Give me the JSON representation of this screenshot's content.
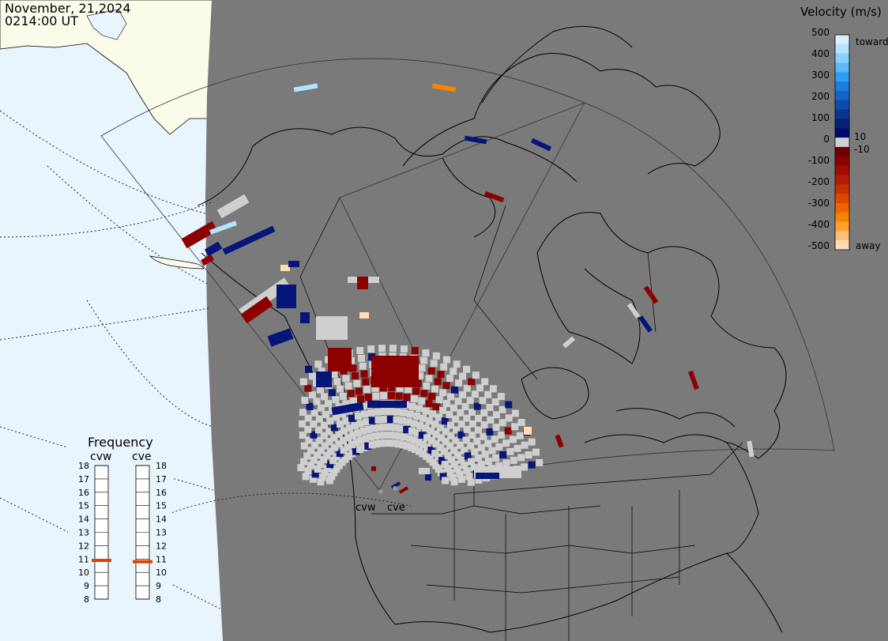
{
  "header": {
    "date": "November, 21,2024",
    "time": "0214:00 UT"
  },
  "velocity_scale": {
    "title": "Velocity (m/s)",
    "toward_label": "toward",
    "away_label": "away",
    "ticks": [
      "500",
      "400",
      "300",
      "200",
      "100",
      "10",
      "0",
      "-10",
      "-100",
      "-200",
      "-300",
      "-400",
      "-500"
    ],
    "bands": [
      {
        "value": 500,
        "color": "#d9f0ff"
      },
      {
        "value": 450,
        "color": "#b4e2ff"
      },
      {
        "value": 400,
        "color": "#8ad0ff"
      },
      {
        "value": 350,
        "color": "#5bbaf7"
      },
      {
        "value": 300,
        "color": "#2e9ef0"
      },
      {
        "value": 250,
        "color": "#1a7fe0"
      },
      {
        "value": 200,
        "color": "#1463c8"
      },
      {
        "value": 150,
        "color": "#0e4aa8"
      },
      {
        "value": 100,
        "color": "#0a3590"
      },
      {
        "value": 50,
        "color": "#061f7a"
      },
      {
        "value": 10,
        "color": "#000a6a"
      },
      {
        "value": 0,
        "color": "#d0d0d0"
      },
      {
        "value": -10,
        "color": "#6e0000"
      },
      {
        "value": -50,
        "color": "#8c0000"
      },
      {
        "value": -100,
        "color": "#a10c00"
      },
      {
        "value": -150,
        "color": "#b31c00"
      },
      {
        "value": -200,
        "color": "#c73000"
      },
      {
        "value": -250,
        "color": "#dc4800"
      },
      {
        "value": -300,
        "color": "#ec6500"
      },
      {
        "value": -350,
        "color": "#f78400"
      },
      {
        "value": -400,
        "color": "#ff9f30"
      },
      {
        "value": -450,
        "color": "#ffc07a"
      },
      {
        "value": -500,
        "color": "#ffdcb4"
      }
    ]
  },
  "frequency": {
    "title": "Frequency",
    "radars": [
      {
        "name": "cvw",
        "mhz": 10.9
      },
      {
        "name": "cve",
        "mhz": 10.8
      }
    ],
    "ticks": [
      "18",
      "17",
      "16",
      "15",
      "14",
      "13",
      "12",
      "11",
      "10",
      "9",
      "8"
    ],
    "marker_color": "#e04000"
  },
  "radars": [
    {
      "name": "cvw"
    },
    {
      "name": "cve"
    }
  ],
  "colors": {
    "night": "#7a7a7a",
    "ocean_day": "#e8f5fd",
    "land_day": "#fbfbea",
    "ground_scatter": "#cfcfcf",
    "coast": "#000000"
  }
}
